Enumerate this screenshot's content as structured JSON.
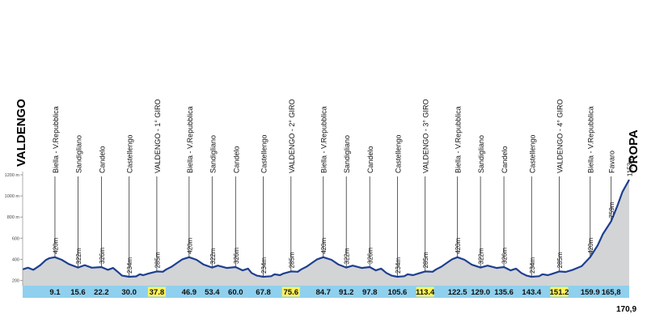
{
  "chart_data": {
    "type": "area",
    "start_label": "VALDENGO",
    "end_label": "OROPA",
    "final_distance": "170,9",
    "y_ticks": [
      {
        "value": 200,
        "label": "200"
      },
      {
        "value": 400,
        "label": "400"
      },
      {
        "value": 600,
        "label": "600"
      },
      {
        "value": 800,
        "label": "800 m"
      },
      {
        "value": 1000,
        "label": "1000 m"
      },
      {
        "value": 1200,
        "label": "1200 m"
      }
    ],
    "ylim": [
      150,
      1200
    ],
    "xlim": [
      0,
      170.9
    ],
    "profile": [
      [
        0,
        305
      ],
      [
        1.5,
        320
      ],
      [
        3,
        300
      ],
      [
        5,
        345
      ],
      [
        6.5,
        392
      ],
      [
        7.5,
        410
      ],
      [
        9.1,
        420
      ],
      [
        11,
        395
      ],
      [
        13,
        355
      ],
      [
        15.6,
        322
      ],
      [
        17.5,
        345
      ],
      [
        19.5,
        320
      ],
      [
        22.2,
        326
      ],
      [
        24,
        300
      ],
      [
        25.5,
        318
      ],
      [
        27,
        275
      ],
      [
        28,
        245
      ],
      [
        30,
        234
      ],
      [
        32,
        238
      ],
      [
        33,
        258
      ],
      [
        34,
        250
      ],
      [
        35.5,
        266
      ],
      [
        37.8,
        285
      ],
      [
        39.5,
        282
      ],
      [
        40.5,
        305
      ],
      [
        42,
        330
      ],
      [
        43.5,
        365
      ],
      [
        45,
        400
      ],
      [
        46.9,
        420
      ],
      [
        49,
        395
      ],
      [
        51,
        350
      ],
      [
        53.4,
        322
      ],
      [
        55,
        340
      ],
      [
        57.5,
        318
      ],
      [
        60,
        326
      ],
      [
        62,
        295
      ],
      [
        63.5,
        312
      ],
      [
        64.5,
        270
      ],
      [
        66,
        245
      ],
      [
        67.8,
        234
      ],
      [
        70,
        240
      ],
      [
        71,
        258
      ],
      [
        72.5,
        250
      ],
      [
        73.5,
        266
      ],
      [
        75.6,
        285
      ],
      [
        77.5,
        282
      ],
      [
        78.5,
        305
      ],
      [
        80,
        330
      ],
      [
        81.5,
        365
      ],
      [
        83,
        400
      ],
      [
        84.7,
        420
      ],
      [
        87,
        395
      ],
      [
        89,
        350
      ],
      [
        91.2,
        322
      ],
      [
        93,
        340
      ],
      [
        95.5,
        318
      ],
      [
        97.8,
        326
      ],
      [
        99.5,
        295
      ],
      [
        101,
        312
      ],
      [
        102.5,
        270
      ],
      [
        104,
        245
      ],
      [
        105.6,
        234
      ],
      [
        107.5,
        240
      ],
      [
        108.5,
        258
      ],
      [
        110,
        250
      ],
      [
        111.5,
        266
      ],
      [
        113.4,
        285
      ],
      [
        115.5,
        282
      ],
      [
        116.5,
        305
      ],
      [
        118,
        330
      ],
      [
        119.5,
        365
      ],
      [
        121,
        400
      ],
      [
        122.5,
        420
      ],
      [
        124.5,
        395
      ],
      [
        126.5,
        350
      ],
      [
        129,
        322
      ],
      [
        131,
        340
      ],
      [
        133.5,
        318
      ],
      [
        135.6,
        326
      ],
      [
        137.5,
        295
      ],
      [
        139,
        312
      ],
      [
        140.5,
        270
      ],
      [
        142,
        245
      ],
      [
        143.4,
        234
      ],
      [
        145.5,
        240
      ],
      [
        146.5,
        258
      ],
      [
        148,
        250
      ],
      [
        149.5,
        266
      ],
      [
        151.2,
        285
      ],
      [
        153,
        280
      ],
      [
        155,
        300
      ],
      [
        157.5,
        335
      ],
      [
        159.9,
        420
      ],
      [
        162,
        530
      ],
      [
        163.5,
        640
      ],
      [
        165.8,
        759
      ],
      [
        167.5,
        900
      ],
      [
        169,
        1040
      ],
      [
        170.9,
        1153
      ]
    ],
    "towns": [
      {
        "km": 0,
        "name": ""
      },
      {
        "km": 9.1,
        "name": "Biella - V.Repubblica"
      },
      {
        "km": 15.6,
        "name": "Sandigliano"
      },
      {
        "km": 22.2,
        "name": "Candelo"
      },
      {
        "km": 30.0,
        "name": "Castellengo"
      },
      {
        "km": 37.8,
        "name": "VALDENGO - 1° GIRO"
      },
      {
        "km": 46.9,
        "name": "Biella - V.Repubblica"
      },
      {
        "km": 53.4,
        "name": "Sandigliano"
      },
      {
        "km": 60.0,
        "name": "Candelo"
      },
      {
        "km": 67.8,
        "name": "Castellengo"
      },
      {
        "km": 75.6,
        "name": "VALDENGO - 2° GIRO"
      },
      {
        "km": 84.7,
        "name": "Biella - V.Repubblica"
      },
      {
        "km": 91.2,
        "name": "Sandigliano"
      },
      {
        "km": 97.8,
        "name": "Candelo"
      },
      {
        "km": 105.6,
        "name": "Castellengo"
      },
      {
        "km": 113.4,
        "name": "VALDENGO - 3° GIRO"
      },
      {
        "km": 122.5,
        "name": "Biella - V.Repubblica"
      },
      {
        "km": 129.0,
        "name": "Sandigliano"
      },
      {
        "km": 135.6,
        "name": "Candelo"
      },
      {
        "km": 143.4,
        "name": "Castellengo"
      },
      {
        "km": 151.2,
        "name": "VALDENGO - 4° GIRO"
      },
      {
        "km": 159.9,
        "name": "Biella - V.Repubblica"
      },
      {
        "km": 165.8,
        "name": "Favaro"
      },
      {
        "km": 170.9,
        "name": ""
      }
    ],
    "elevation_labels": [
      {
        "km": 9.1,
        "elev": 420,
        "label": "420m"
      },
      {
        "km": 15.6,
        "elev": 322,
        "label": "322m"
      },
      {
        "km": 22.2,
        "elev": 326,
        "label": "326m"
      },
      {
        "km": 30.0,
        "elev": 234,
        "label": "234m"
      },
      {
        "km": 37.8,
        "elev": 285,
        "label": "285m"
      },
      {
        "km": 46.9,
        "elev": 420,
        "label": "420m"
      },
      {
        "km": 53.4,
        "elev": 322,
        "label": "322m"
      },
      {
        "km": 60.0,
        "elev": 326,
        "label": "326m"
      },
      {
        "km": 67.8,
        "elev": 234,
        "label": "234m"
      },
      {
        "km": 75.6,
        "elev": 285,
        "label": "285m"
      },
      {
        "km": 84.7,
        "elev": 420,
        "label": "420m"
      },
      {
        "km": 91.2,
        "elev": 322,
        "label": "322m"
      },
      {
        "km": 97.8,
        "elev": 326,
        "label": "326m"
      },
      {
        "km": 105.6,
        "elev": 234,
        "label": "234m"
      },
      {
        "km": 113.4,
        "elev": 285,
        "label": "285m"
      },
      {
        "km": 122.5,
        "elev": 420,
        "label": "420m"
      },
      {
        "km": 129.0,
        "elev": 322,
        "label": "322m"
      },
      {
        "km": 135.6,
        "elev": 326,
        "label": "326m"
      },
      {
        "km": 143.4,
        "elev": 234,
        "label": "234m"
      },
      {
        "km": 151.2,
        "elev": 285,
        "label": "285m"
      },
      {
        "km": 159.9,
        "elev": 420,
        "label": "420m"
      },
      {
        "km": 165.8,
        "elev": 759,
        "label": "759m"
      },
      {
        "km": 170.9,
        "elev": 1153,
        "label": "1153m"
      }
    ],
    "km_marks": [
      {
        "km": 9.1,
        "label": "9.1",
        "highlight": false
      },
      {
        "km": 15.6,
        "label": "15.6",
        "highlight": false
      },
      {
        "km": 22.2,
        "label": "22.2",
        "highlight": false
      },
      {
        "km": 30.0,
        "label": "30.0",
        "highlight": false
      },
      {
        "km": 37.8,
        "label": "37.8",
        "highlight": true
      },
      {
        "km": 46.9,
        "label": "46.9",
        "highlight": false
      },
      {
        "km": 53.4,
        "label": "53.4",
        "highlight": false
      },
      {
        "km": 60.0,
        "label": "60.0",
        "highlight": false
      },
      {
        "km": 67.8,
        "label": "67.8",
        "highlight": false
      },
      {
        "km": 75.6,
        "label": "75.6",
        "highlight": true
      },
      {
        "km": 84.7,
        "label": "84.7",
        "highlight": false
      },
      {
        "km": 91.2,
        "label": "91.2",
        "highlight": false
      },
      {
        "km": 97.8,
        "label": "97.8",
        "highlight": false
      },
      {
        "km": 105.6,
        "label": "105.6",
        "highlight": false
      },
      {
        "km": 113.4,
        "label": "113.4",
        "highlight": true
      },
      {
        "km": 122.5,
        "label": "122.5",
        "highlight": false
      },
      {
        "km": 129.0,
        "label": "129.0",
        "highlight": false
      },
      {
        "km": 135.6,
        "label": "135.6",
        "highlight": false
      },
      {
        "km": 143.4,
        "label": "143.4",
        "highlight": false
      },
      {
        "km": 151.2,
        "label": "151.2",
        "highlight": true
      },
      {
        "km": 159.9,
        "label": "159.9",
        "highlight": false
      },
      {
        "km": 165.8,
        "label": "165,8",
        "highlight": false
      }
    ],
    "colors": {
      "line": "#1d3f8f",
      "fill": "#d3d4d6",
      "km_bar": "#8fd0ee",
      "highlight": "#fff35a",
      "marker": "#4a4a4a",
      "text": "#111111"
    }
  }
}
